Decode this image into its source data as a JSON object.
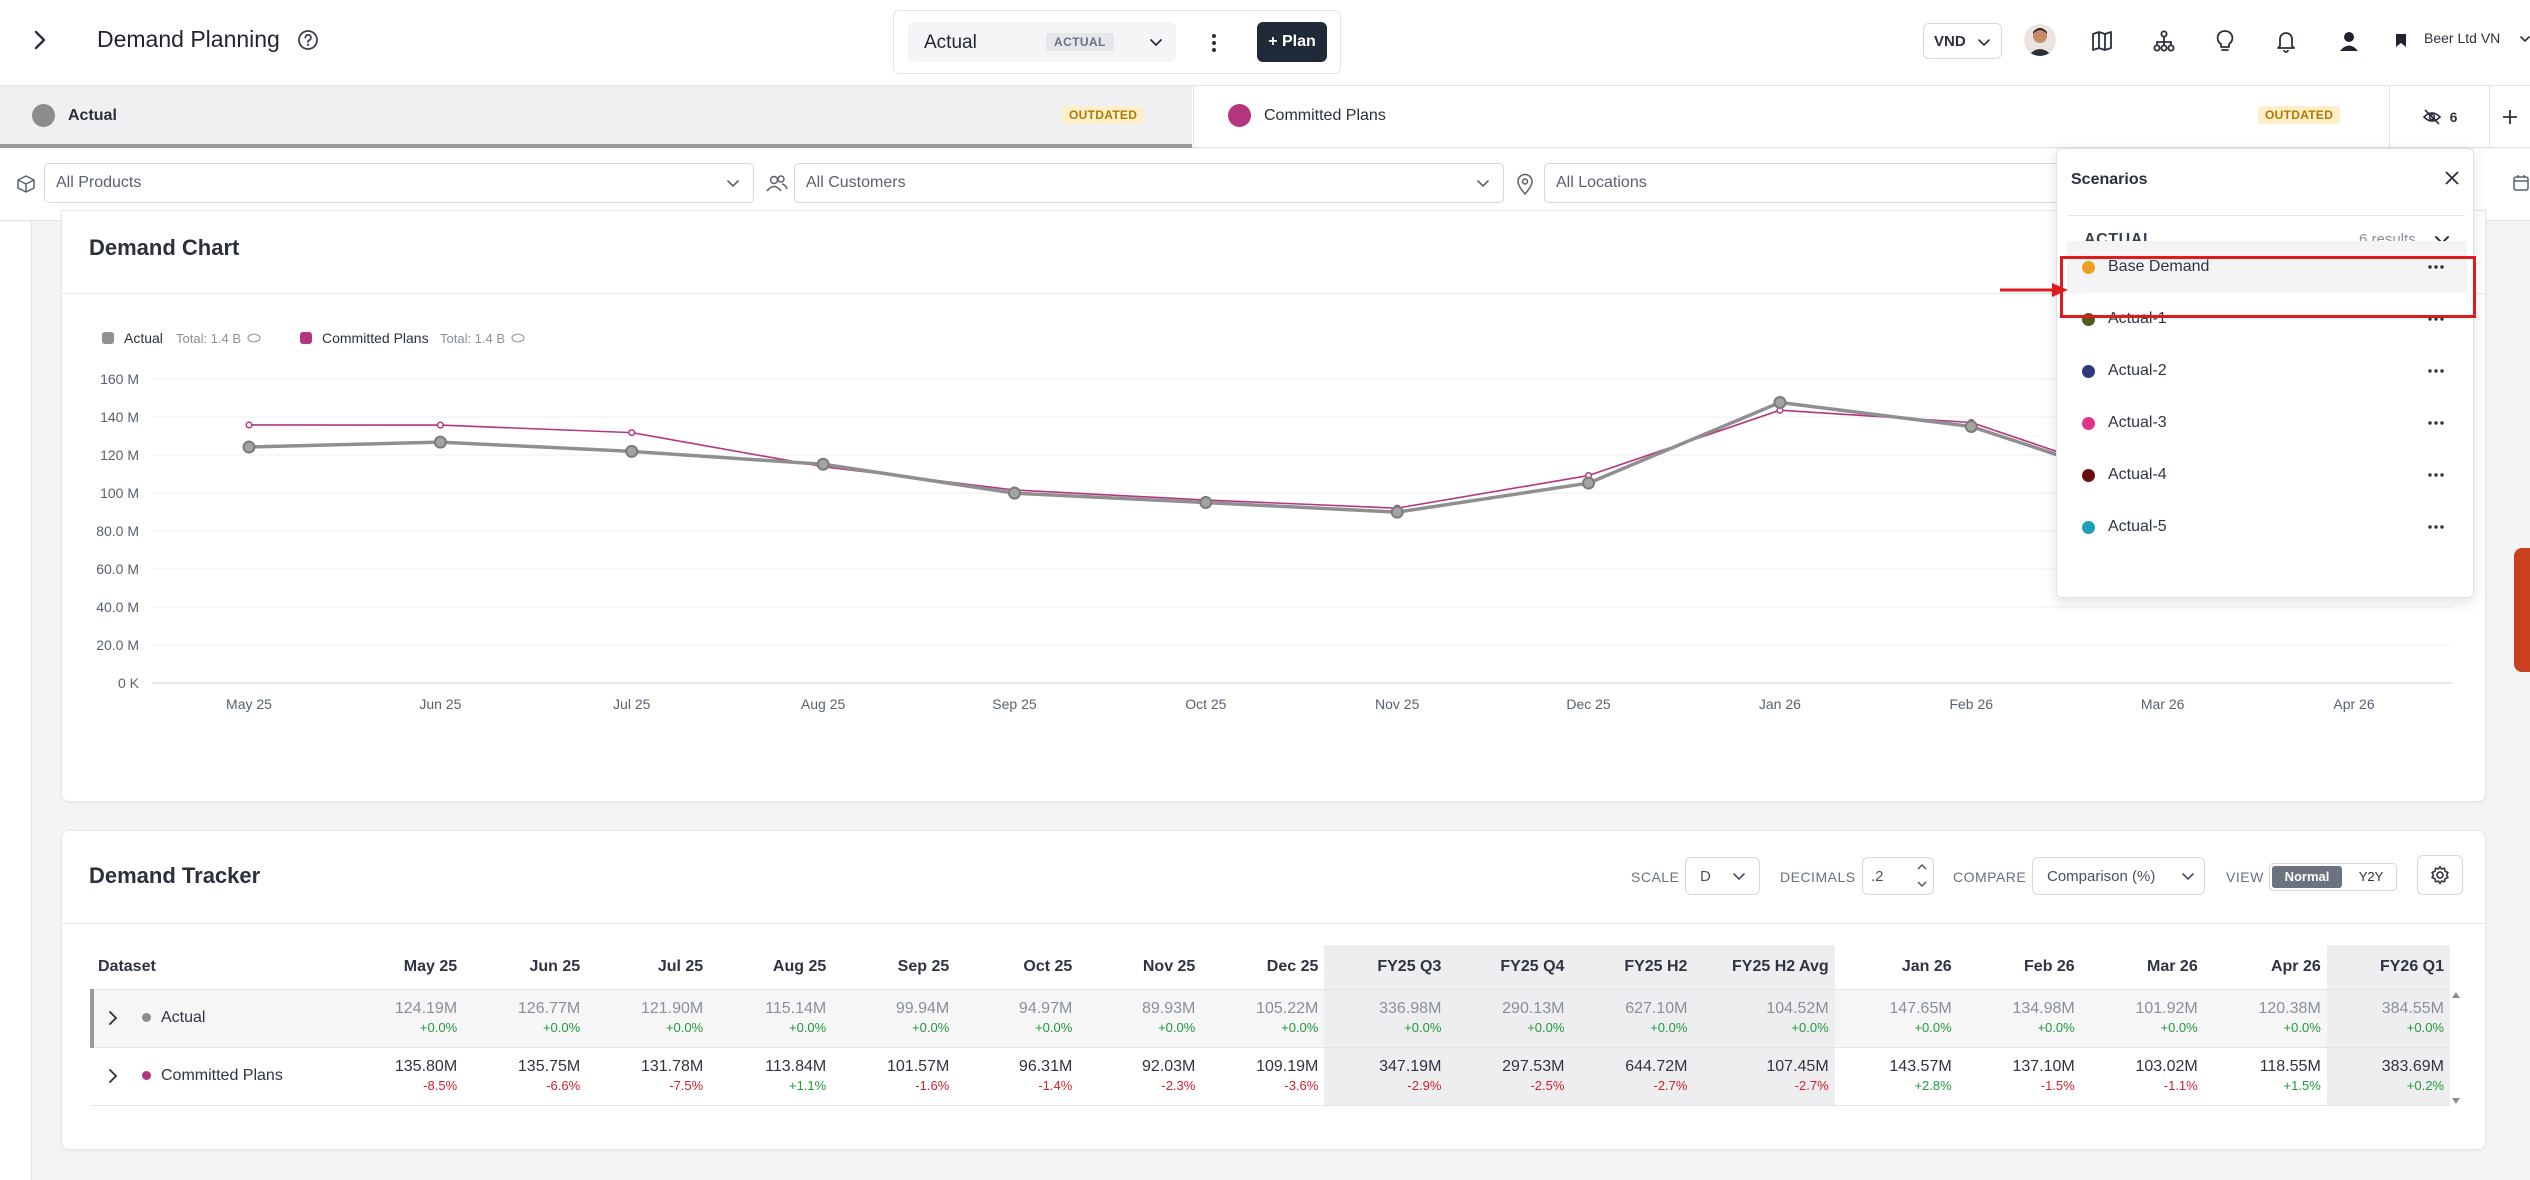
{
  "header": {
    "title": "Demand Planning",
    "scenario_value": "Actual",
    "scenario_badge": "ACTUAL",
    "plan_button": "+ Plan",
    "currency": "VND",
    "company": "Beer Ltd VN"
  },
  "tabs": [
    {
      "label": "Actual",
      "badge": "OUTDATED",
      "dot_color": "#8c8c8c"
    },
    {
      "label": "Committed Plans",
      "badge": "OUTDATED",
      "dot_color": "#b5367f"
    }
  ],
  "hidden_count": "6",
  "filters": {
    "products": "All Products",
    "customers": "All Customers",
    "locations": "All Locations"
  },
  "chart_card": {
    "title": "Demand Chart"
  },
  "chart_data": {
    "type": "line",
    "x": [
      "May 25",
      "Jun 25",
      "Jul 25",
      "Aug 25",
      "Sep 25",
      "Oct 25",
      "Nov 25",
      "Dec 25",
      "Jan 26",
      "Feb 26",
      "Mar 26",
      "Apr 26"
    ],
    "y_ticks": [
      "0 K",
      "20.0 M",
      "40.0 M",
      "60.0 M",
      "80.0 M",
      "100 M",
      "120 M",
      "140 M",
      "160 M"
    ],
    "ylim": [
      0,
      160
    ],
    "series": [
      {
        "name": "Actual",
        "total": "Total: 1.4 B",
        "color": "#8f8f8f",
        "values": [
          124.19,
          126.77,
          121.9,
          115.14,
          99.94,
          94.97,
          89.93,
          105.22,
          147.65,
          134.98,
          101.92,
          120.38
        ]
      },
      {
        "name": "Committed Plans",
        "total": "Total: 1.4 B",
        "color": "#b5367f",
        "values": [
          135.8,
          135.75,
          131.78,
          113.84,
          101.57,
          96.31,
          92.03,
          109.19,
          143.57,
          137.1,
          103.02,
          118.55
        ]
      }
    ]
  },
  "tracker": {
    "title": "Demand Tracker",
    "scale_label": "SCALE",
    "scale_value": "D",
    "decimals_label": "DECIMALS",
    "decimals_value": ".2",
    "compare_label": "COMPARE",
    "compare_value": "Comparison (%)",
    "view_label": "VIEW",
    "view_options": [
      "Normal",
      "Y2Y"
    ],
    "columns": [
      "Dataset",
      "May 25",
      "Jun 25",
      "Jul 25",
      "Aug 25",
      "Sep 25",
      "Oct 25",
      "Nov 25",
      "Dec 25",
      "FY25 Q3",
      "FY25 Q4",
      "FY25 H2",
      "FY25 H2 Avg",
      "Jan 26",
      "Feb 26",
      "Mar 26",
      "Apr 26",
      "FY26 Q1"
    ],
    "rows": [
      {
        "name": "Actual",
        "color": "#8c8c8c",
        "values": [
          "124.19M",
          "126.77M",
          "121.90M",
          "115.14M",
          "99.94M",
          "94.97M",
          "89.93M",
          "105.22M",
          "336.98M",
          "290.13M",
          "627.10M",
          "104.52M",
          "147.65M",
          "134.98M",
          "101.92M",
          "120.38M",
          "384.55M"
        ],
        "deltas": [
          "+0.0%",
          "+0.0%",
          "+0.0%",
          "+0.0%",
          "+0.0%",
          "+0.0%",
          "+0.0%",
          "+0.0%",
          "+0.0%",
          "+0.0%",
          "+0.0%",
          "+0.0%",
          "+0.0%",
          "+0.0%",
          "+0.0%",
          "+0.0%",
          "+0.0%"
        ]
      },
      {
        "name": "Committed Plans",
        "color": "#b5367f",
        "values": [
          "135.80M",
          "135.75M",
          "131.78M",
          "113.84M",
          "101.57M",
          "96.31M",
          "92.03M",
          "109.19M",
          "347.19M",
          "297.53M",
          "644.72M",
          "107.45M",
          "143.57M",
          "137.10M",
          "103.02M",
          "118.55M",
          "383.69M"
        ],
        "deltas": [
          "-8.5%",
          "-6.6%",
          "-7.5%",
          "+1.1%",
          "-1.6%",
          "-1.4%",
          "-2.3%",
          "-3.6%",
          "-2.9%",
          "-2.5%",
          "-2.7%",
          "-2.7%",
          "+2.8%",
          "-1.5%",
          "-1.1%",
          "+1.5%",
          "+0.2%"
        ]
      }
    ]
  },
  "scenarios": {
    "title": "Scenarios",
    "group": "ACTUAL",
    "count": "6 results",
    "items": [
      {
        "label": "Base Demand",
        "color": "#f0a020"
      },
      {
        "label": "Actual-1",
        "color": "#4f5a1f"
      },
      {
        "label": "Actual-2",
        "color": "#2b3a78"
      },
      {
        "label": "Actual-3",
        "color": "#e0338a"
      },
      {
        "label": "Actual-4",
        "color": "#6a0f12"
      },
      {
        "label": "Actual-5",
        "color": "#1aa0b8"
      }
    ]
  }
}
